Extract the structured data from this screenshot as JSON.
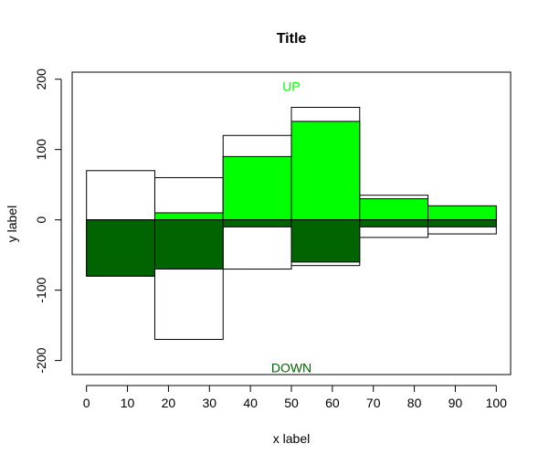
{
  "chart_data": {
    "type": "bar",
    "title": "Title",
    "xlabel": "x label",
    "ylabel": "y label",
    "xlim": [
      -3.5,
      103.5
    ],
    "ylim": [
      -220,
      210
    ],
    "x_ticks": [
      0,
      10,
      20,
      30,
      40,
      50,
      60,
      70,
      80,
      90,
      100
    ],
    "y_ticks": [
      -200,
      -100,
      0,
      100,
      200
    ],
    "bin_edges": [
      0,
      16.6667,
      33.3333,
      50,
      66.6667,
      83.3333,
      100
    ],
    "grid": false,
    "legend": "none",
    "series": [
      {
        "role": "outline-positive",
        "values": [
          70,
          60,
          120,
          160,
          35,
          10
        ],
        "fill": "#ffffff",
        "stroke": "#000000"
      },
      {
        "role": "outline-negative",
        "values": [
          -80,
          -170,
          -70,
          -65,
          -25,
          -20
        ],
        "fill": "#ffffff",
        "stroke": "#000000"
      },
      {
        "role": "up-filled",
        "values": [
          0,
          10,
          90,
          140,
          30,
          20
        ],
        "fill": "#00ff00",
        "stroke": "#000000"
      },
      {
        "role": "down-filled",
        "values": [
          -80,
          -70,
          -10,
          -60,
          -10,
          -10
        ],
        "fill": "#006400",
        "stroke": "#000000"
      }
    ],
    "annotations": [
      {
        "text": "UP",
        "x": 50,
        "y": 190,
        "color": "#00ff00"
      },
      {
        "text": "DOWN",
        "x": 50,
        "y": -210,
        "color": "#006400"
      }
    ]
  }
}
